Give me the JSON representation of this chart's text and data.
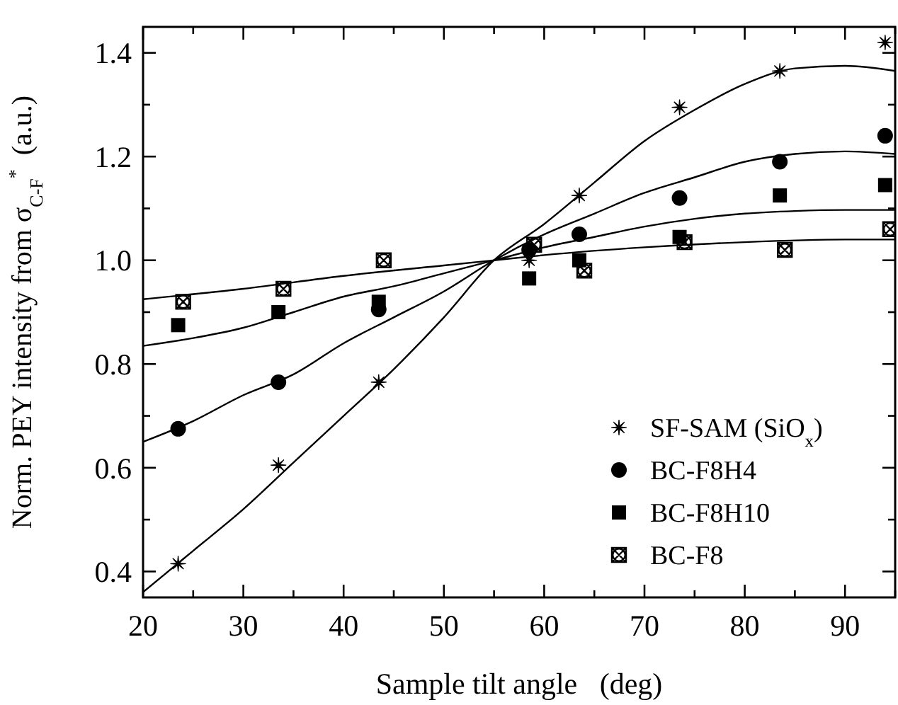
{
  "chart_data": {
    "type": "scatter",
    "xlabel": "Sample tilt angle   (deg)",
    "ylabel": "Norm. PEY intensity from σ$_{C-F}$$^{*}$  (a.u.)",
    "xlim": [
      20,
      95
    ],
    "ylim": [
      0.35,
      1.45
    ],
    "xticks": [
      20,
      {
        "value": 25,
        "label": null
      },
      30,
      {
        "value": 35,
        "label": null
      },
      40,
      {
        "value": 45,
        "label": null
      },
      50,
      {
        "value": 55,
        "label": null
      },
      60,
      {
        "value": 65,
        "label": null
      },
      70,
      {
        "value": 75,
        "label": null
      },
      80,
      {
        "value": 85,
        "label": null
      },
      90,
      {
        "value": 95,
        "label": null
      }
    ],
    "yticks": [
      {
        "value": 0.4,
        "label": "0.4"
      },
      {
        "value": 0.5,
        "label": null
      },
      {
        "value": 0.6,
        "label": "0.6"
      },
      {
        "value": 0.7,
        "label": null
      },
      {
        "value": 0.8,
        "label": "0.8"
      },
      {
        "value": 0.9,
        "label": null
      },
      {
        "value": 1.0,
        "label": "1.0"
      },
      {
        "value": 1.1,
        "label": null
      },
      {
        "value": 1.2,
        "label": "1.2"
      },
      {
        "value": 1.3,
        "label": null
      },
      {
        "value": 1.4,
        "label": "1.4"
      }
    ],
    "grid": false,
    "legend": "bottom right",
    "series": [
      {
        "name": "SF-SAM (SiO$_{x}$)",
        "color": "#000000",
        "marker": "star",
        "x": [
          23.5,
          33.5,
          43.5,
          58.5,
          63.5,
          73.5,
          83.5,
          94
        ],
        "values": [
          0.415,
          0.605,
          0.765,
          1.0,
          1.125,
          1.295,
          1.365,
          1.42
        ]
      },
      {
        "name": "BC-F8H4",
        "color": "#000000",
        "marker": "circle",
        "x": [
          23.5,
          33.5,
          43.5,
          58.5,
          63.5,
          73.5,
          83.5,
          94
        ],
        "values": [
          0.675,
          0.765,
          0.905,
          1.02,
          1.05,
          1.12,
          1.19,
          1.24
        ]
      },
      {
        "name": "BC-F8H10",
        "color": "#000000",
        "marker": "square",
        "x": [
          23.5,
          33.5,
          43.5,
          58.5,
          63.5,
          73.5,
          83.5,
          94
        ],
        "values": [
          0.875,
          0.9,
          0.92,
          0.965,
          1.0,
          1.045,
          1.125,
          1.145
        ]
      },
      {
        "name": "BC-F8",
        "color": "#000000",
        "marker": "cross",
        "x": [
          24,
          34,
          44,
          59,
          64,
          74,
          84,
          94.5
        ],
        "values": [
          0.92,
          0.945,
          1.0,
          1.03,
          0.98,
          1.035,
          1.02,
          1.06
        ]
      },
      {
        "type": "line",
        "color": "#000000",
        "marker": "none",
        "x": [
          20,
          25,
          30,
          35,
          40,
          45,
          50,
          55,
          60,
          65,
          70,
          75,
          80,
          85,
          90,
          95
        ],
        "values": [
          0.36,
          0.44,
          0.52,
          0.61,
          0.7,
          0.79,
          0.89,
          1.0,
          1.07,
          1.15,
          1.23,
          1.29,
          1.34,
          1.37,
          1.375,
          1.365
        ]
      },
      {
        "type": "line",
        "color": "#000000",
        "marker": "none",
        "x": [
          20,
          25,
          30,
          35,
          40,
          45,
          50,
          55,
          60,
          65,
          70,
          75,
          80,
          85,
          90,
          95
        ],
        "values": [
          0.65,
          0.69,
          0.74,
          0.78,
          0.84,
          0.89,
          0.94,
          1.0,
          1.05,
          1.09,
          1.13,
          1.16,
          1.19,
          1.205,
          1.21,
          1.205
        ]
      },
      {
        "type": "line",
        "color": "#000000",
        "marker": "none",
        "x": [
          20,
          25,
          30,
          35,
          40,
          45,
          50,
          55,
          60,
          65,
          70,
          75,
          80,
          85,
          90,
          95
        ],
        "values": [
          0.835,
          0.85,
          0.87,
          0.9,
          0.93,
          0.95,
          0.975,
          1.0,
          1.025,
          1.045,
          1.065,
          1.08,
          1.09,
          1.095,
          1.097,
          1.097
        ]
      },
      {
        "type": "line",
        "color": "#000000",
        "marker": "none",
        "x": [
          20,
          30,
          40,
          50,
          55,
          60,
          70,
          80,
          90,
          95
        ],
        "values": [
          0.925,
          0.945,
          0.97,
          0.99,
          1.0,
          1.01,
          1.025,
          1.035,
          1.04,
          1.04
        ]
      }
    ]
  }
}
